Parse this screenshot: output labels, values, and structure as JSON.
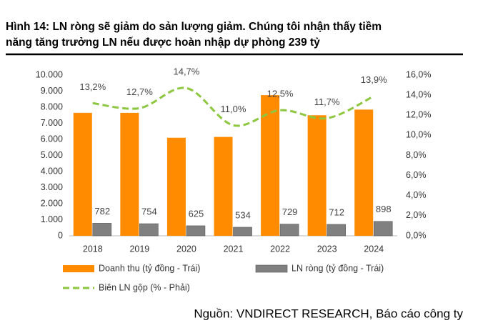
{
  "chart_data": {
    "type": "bar-line",
    "title": [
      "Hình 14: LN ròng sẽ giảm do sản lượng giảm. Chúng tôi nhận thấy tiềm",
      "năng tăng trưởng LN nếu được hoàn nhập dự phòng 239 tỷ"
    ],
    "source": "Nguồn: VNDIRECT RESEARCH, Báo cáo công ty",
    "categories": [
      "2018",
      "2019",
      "2020",
      "2021",
      "2022",
      "2023",
      "2024"
    ],
    "series": [
      {
        "name": "Doanh thu (tỷ đồng - Trái)",
        "color": "#ff8c00",
        "type": "bar",
        "values": [
          7650,
          7650,
          6100,
          6150,
          8750,
          7500,
          7850
        ]
      },
      {
        "name": "LN ròng (tỷ đồng - Trái)",
        "color": "#808080",
        "type": "bar",
        "values": [
          782,
          754,
          625,
          534,
          729,
          712,
          898
        ],
        "show_labels": true
      },
      {
        "name": "Biên LN gộp (% - Phải)",
        "color": "#8dc63f",
        "type": "line",
        "axis": "y2",
        "values": [
          13.2,
          12.7,
          14.7,
          11.0,
          12.5,
          11.7,
          13.9
        ],
        "value_labels": [
          "13,2%",
          "12,7%",
          "14,7%",
          "11,0%",
          "12,5%",
          "11,7%",
          "13,9%"
        ]
      }
    ],
    "ylim": [
      0,
      10000
    ],
    "yticks": [
      0,
      {
        "value": 1000,
        "label": "1.000"
      },
      {
        "value": 2000,
        "label": "2.000"
      },
      {
        "value": 3000,
        "label": "3.000"
      },
      {
        "value": 4000,
        "label": "4.000"
      },
      {
        "value": 5000,
        "label": "5.000"
      },
      {
        "value": 6000,
        "label": "6.000"
      },
      {
        "value": 7000,
        "label": "7.000"
      },
      {
        "value": 8000,
        "label": "8.000"
      },
      {
        "value": 9000,
        "label": "9.000"
      },
      {
        "value": 10000,
        "label": "10.000"
      }
    ],
    "y2lim": [
      0,
      16
    ],
    "y2ticks": [
      {
        "value": 0,
        "label": "0,0%"
      },
      {
        "value": 2,
        "label": "2,0%"
      },
      {
        "value": 4,
        "label": "4,0%"
      },
      {
        "value": 6,
        "label": "6,0%"
      },
      {
        "value": 8,
        "label": "8,0%"
      },
      {
        "value": 10,
        "label": "10,0%"
      },
      {
        "value": 12,
        "label": "12,0%"
      },
      {
        "value": 14,
        "label": "14,0%"
      },
      {
        "value": 16,
        "label": "16,0%"
      }
    ],
    "grid": false
  }
}
